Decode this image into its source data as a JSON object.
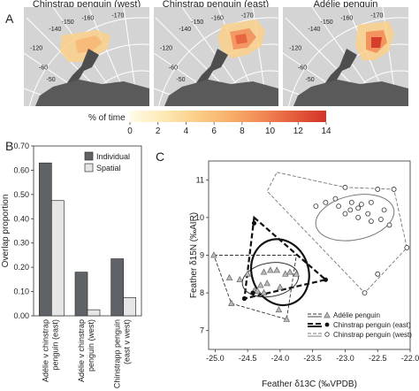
{
  "panels": {
    "a": "A",
    "b": "B",
    "c": "C"
  },
  "maps": [
    {
      "title": "Chinstrap penguin (west)",
      "lon_labels": [
        "-60",
        "-50",
        "-140",
        "-150",
        "-160",
        "-170",
        "-120"
      ]
    },
    {
      "title": "Chinstrap penguin (east)",
      "lon_labels": [
        "-60",
        "-50",
        "-140",
        "-150",
        "-160",
        "-170",
        "-120"
      ]
    },
    {
      "title": "Adélie penguin",
      "lon_labels": [
        "-60",
        "-50",
        "-140",
        "-150",
        "-160",
        "-170",
        "-120"
      ]
    }
  ],
  "colorbar": {
    "label": "% of time",
    "ticks": [
      "0",
      "2",
      "4",
      "6",
      "8",
      "10",
      "12",
      "14"
    ],
    "colors": [
      "#fffbe6",
      "#fde9b6",
      "#fbd08a",
      "#f8b16c",
      "#f28a55",
      "#e55e3e",
      "#d23327"
    ]
  },
  "chart_data": [
    {
      "type": "bar",
      "ylabel": "Overlap proportion",
      "ylim": [
        0,
        0.7
      ],
      "yticks": [
        "0.00",
        "0.10",
        "0.20",
        "0.30",
        "0.40",
        "0.50",
        "0.60",
        "0.70"
      ],
      "categories": [
        "Adélie v chinstrap penguin (east)",
        "Adélie v chinstrap penguin (west)",
        "Chinstrapp penguin (east v west)"
      ],
      "category_lines": [
        [
          "Adélie v chinstrap",
          "penguin (east)"
        ],
        [
          "Adélie v chinstrap",
          "penguin (west)"
        ],
        [
          "Chinstrapp penguin",
          "(east v west)"
        ]
      ],
      "series": [
        {
          "name": "Individual",
          "values": [
            0.63,
            0.18,
            0.235
          ],
          "color": "#5f6266"
        },
        {
          "name": "Spatial",
          "values": [
            0.475,
            0.025,
            0.075
          ],
          "color": "#e6e6e6"
        }
      ],
      "legend": "top-right"
    },
    {
      "type": "scatter",
      "xlabel": "Feather δ13C (‰VPDB)",
      "ylabel": "Feather δ15N (‰AIR)",
      "xlim": [
        -25.1,
        -22.0
      ],
      "ylim": [
        6.5,
        11.5
      ],
      "xticks": [
        "-25.0",
        "-24.5",
        "-24.0",
        "-23.5",
        "-23.0",
        "-22.5",
        "-22.0"
      ],
      "yticks": [
        "7",
        "8",
        "9",
        "10",
        "11"
      ],
      "series": [
        {
          "name": "Adélie penguin",
          "marker": "triangle",
          "points": [
            [
              -24.4,
              8.05
            ],
            [
              -24.3,
              8.2
            ],
            [
              -24.25,
              8.0
            ],
            [
              -24.2,
              8.25
            ],
            [
              -24.0,
              8.15
            ],
            [
              -23.85,
              8.55
            ],
            [
              -23.92,
              8.5
            ],
            [
              -24.05,
              8.6
            ],
            [
              -24.15,
              8.6
            ],
            [
              -24.25,
              8.55
            ],
            [
              -24.5,
              8.5
            ],
            [
              -24.62,
              8.35
            ],
            [
              -24.78,
              8.4
            ],
            [
              -24.35,
              8.05
            ],
            [
              -24.02,
              7.55
            ],
            [
              -23.9,
              7.3
            ],
            [
              -24.75,
              7.72
            ],
            [
              -25.02,
              9.0
            ],
            [
              -23.75,
              8.5
            ]
          ]
        },
        {
          "name": "Chinstrap penguin (east)",
          "marker": "filled-circle",
          "points": [
            [
              -24.4,
              9.85
            ],
            [
              -24.42,
              8.0
            ],
            [
              -24.55,
              7.85
            ],
            [
              -23.3,
              8.35
            ]
          ]
        },
        {
          "name": "Chinstrap penguin (west)",
          "marker": "open-circle",
          "points": [
            [
              -23.45,
              10.3
            ],
            [
              -23.3,
              10.4
            ],
            [
              -23.15,
              10.5
            ],
            [
              -23.1,
              10.3
            ],
            [
              -23.0,
              10.8
            ],
            [
              -22.9,
              10.4
            ],
            [
              -22.8,
              10.0
            ],
            [
              -22.75,
              10.35
            ],
            [
              -22.65,
              10.1
            ],
            [
              -22.6,
              10.4
            ],
            [
              -22.5,
              10.75
            ],
            [
              -22.45,
              9.95
            ],
            [
              -22.4,
              10.2
            ],
            [
              -22.32,
              9.8
            ],
            [
              -22.25,
              10.75
            ],
            [
              -22.05,
              9.2
            ],
            [
              -22.5,
              8.5
            ],
            [
              -22.7,
              8.0
            ],
            [
              -23.0,
              10.1
            ],
            [
              -22.92,
              10.2
            ],
            [
              -22.8,
              10.25
            ],
            [
              -22.6,
              9.9
            ]
          ]
        }
      ],
      "legend": "bottom-right"
    }
  ]
}
